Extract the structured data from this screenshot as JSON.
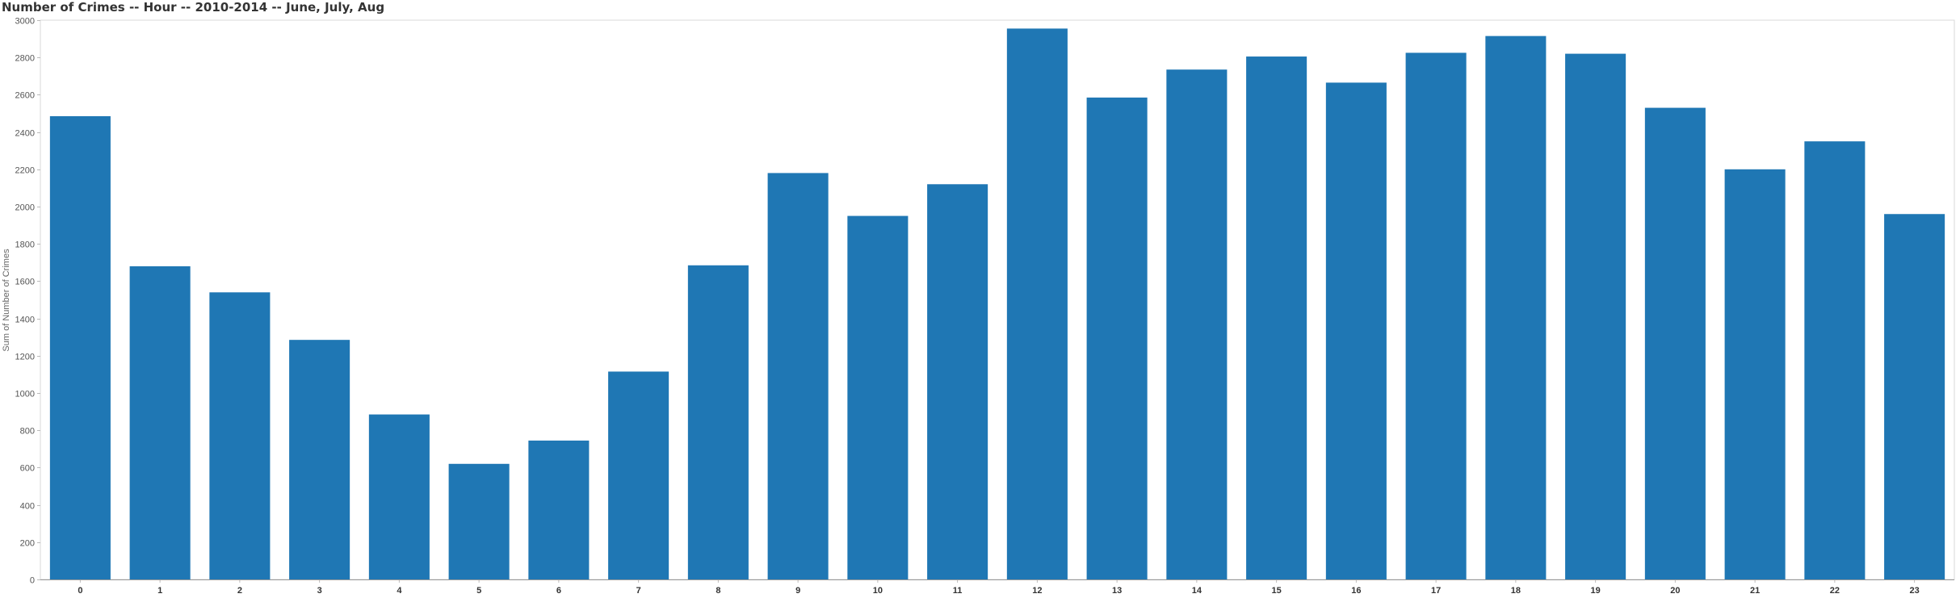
{
  "chart_data": {
    "type": "bar",
    "title": "Number of Crimes -- Hour -- 2010-2014 -- June, July, Aug",
    "xlabel": "",
    "ylabel": "Sum of Number of Crimes",
    "categories": [
      "0",
      "1",
      "2",
      "3",
      "4",
      "5",
      "6",
      "7",
      "8",
      "9",
      "10",
      "11",
      "12",
      "13",
      "14",
      "15",
      "16",
      "17",
      "18",
      "19",
      "20",
      "21",
      "22",
      "23"
    ],
    "values": [
      2485,
      1680,
      1540,
      1285,
      885,
      620,
      745,
      1115,
      1685,
      2180,
      1950,
      2120,
      2955,
      2585,
      2735,
      2805,
      2665,
      2825,
      2915,
      2820,
      2530,
      2200,
      2350,
      1960
    ],
    "ylim": [
      0,
      3000
    ],
    "yticks": [
      0,
      200,
      400,
      600,
      800,
      1000,
      1200,
      1400,
      1600,
      1800,
      2000,
      2200,
      2400,
      2600,
      2800,
      3000
    ],
    "grid": false,
    "bar_color": "#1f77b4",
    "axis_color": "#cccccc"
  }
}
